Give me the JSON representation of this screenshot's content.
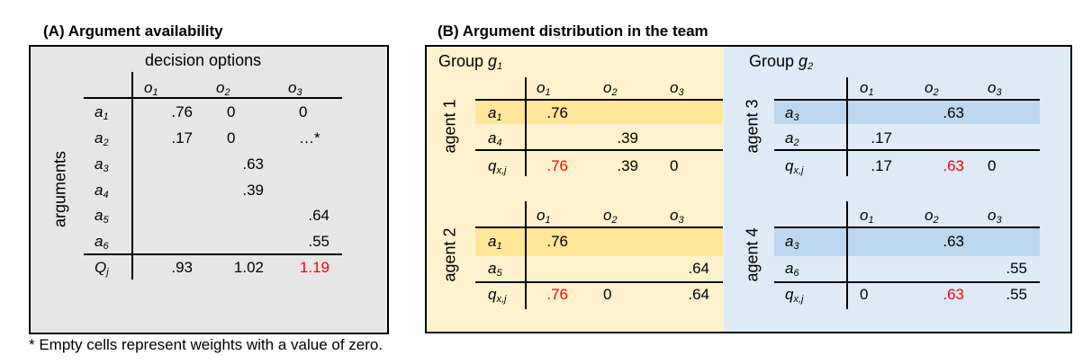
{
  "panel_a": {
    "title": "(A) Argument availability",
    "header": "decision options",
    "row_axis": "arguments",
    "columns": [
      {
        "base": "o",
        "sub": "1"
      },
      {
        "base": "o",
        "sub": "2"
      },
      {
        "base": "o",
        "sub": "3"
      }
    ],
    "rows": [
      {
        "label": {
          "base": "a",
          "sub": "1"
        },
        "cells": [
          ".76",
          "0",
          "0"
        ]
      },
      {
        "label": {
          "base": "a",
          "sub": "2"
        },
        "cells": [
          ".17",
          "0",
          "…*"
        ]
      },
      {
        "label": {
          "base": "a",
          "sub": "3"
        },
        "cells": [
          "",
          ".63",
          ""
        ]
      },
      {
        "label": {
          "base": "a",
          "sub": "4"
        },
        "cells": [
          "",
          ".39",
          ""
        ]
      },
      {
        "label": {
          "base": "a",
          "sub": "5"
        },
        "cells": [
          "",
          "",
          ".64"
        ]
      },
      {
        "label": {
          "base": "a",
          "sub": "6"
        },
        "cells": [
          "",
          "",
          ".55"
        ]
      }
    ],
    "total": {
      "label": {
        "base": "Q",
        "sub": "j"
      },
      "cells": [
        ".93",
        "1.02",
        "1.19"
      ],
      "emphasis": [
        2
      ]
    }
  },
  "panel_b": {
    "title": "(B) Argument distribution in the team",
    "groups": [
      {
        "label": "Group ",
        "sub": "1",
        "base": "g",
        "color": "#fff2cc",
        "highlight": "#ffe699",
        "agents": [
          {
            "name": "agent 1",
            "rows": [
              {
                "label": {
                  "base": "a",
                  "sub": "1"
                },
                "cells": [
                  ".76",
                  "",
                  ""
                ],
                "highlighted": true
              },
              {
                "label": {
                  "base": "a",
                  "sub": "4"
                },
                "cells": [
                  "",
                  ".39",
                  ""
                ]
              }
            ],
            "total": {
              "label": {
                "base": "q",
                "sub": "x,j"
              },
              "cells": [
                ".76",
                ".39",
                "0"
              ],
              "emphasis": [
                0
              ]
            }
          },
          {
            "name": "agent 2",
            "rows": [
              {
                "label": {
                  "base": "a",
                  "sub": "1"
                },
                "cells": [
                  ".76",
                  "",
                  ""
                ],
                "highlighted": true
              },
              {
                "label": {
                  "base": "a",
                  "sub": "5"
                },
                "cells": [
                  "",
                  "",
                  ".64"
                ]
              }
            ],
            "total": {
              "label": {
                "base": "q",
                "sub": "x,j"
              },
              "cells": [
                ".76",
                "0",
                ".64"
              ],
              "emphasis": [
                0
              ]
            }
          }
        ]
      },
      {
        "label": "Group ",
        "sub": "2",
        "base": "g",
        "color": "#deebf7",
        "highlight": "#bdd7ee",
        "agents": [
          {
            "name": "agent 3",
            "rows": [
              {
                "label": {
                  "base": "a",
                  "sub": "3"
                },
                "cells": [
                  "",
                  ".63",
                  ""
                ],
                "highlighted": true
              },
              {
                "label": {
                  "base": "a",
                  "sub": "2"
                },
                "cells": [
                  ".17",
                  "",
                  ""
                ]
              }
            ],
            "total": {
              "label": {
                "base": "q",
                "sub": "x,j"
              },
              "cells": [
                ".17",
                ".63",
                "0"
              ],
              "emphasis": [
                1
              ]
            }
          },
          {
            "name": "agent 4",
            "rows": [
              {
                "label": {
                  "base": "a",
                  "sub": "3"
                },
                "cells": [
                  "",
                  ".63",
                  ""
                ],
                "highlighted": true
              },
              {
                "label": {
                  "base": "a",
                  "sub": "6"
                },
                "cells": [
                  "",
                  "",
                  ".55"
                ]
              }
            ],
            "total": {
              "label": {
                "base": "q",
                "sub": "x,j"
              },
              "cells": [
                "0",
                ".63",
                ".55"
              ],
              "emphasis": [
                1
              ]
            }
          }
        ]
      }
    ],
    "columns": [
      {
        "base": "o",
        "sub": "1"
      },
      {
        "base": "o",
        "sub": "2"
      },
      {
        "base": "o",
        "sub": "3"
      }
    ]
  },
  "footnote": "* Empty cells represent weights with a value of zero.",
  "colors": {
    "emphasis": "#ff0000",
    "panel_a_bg": "#e7e6e6"
  }
}
